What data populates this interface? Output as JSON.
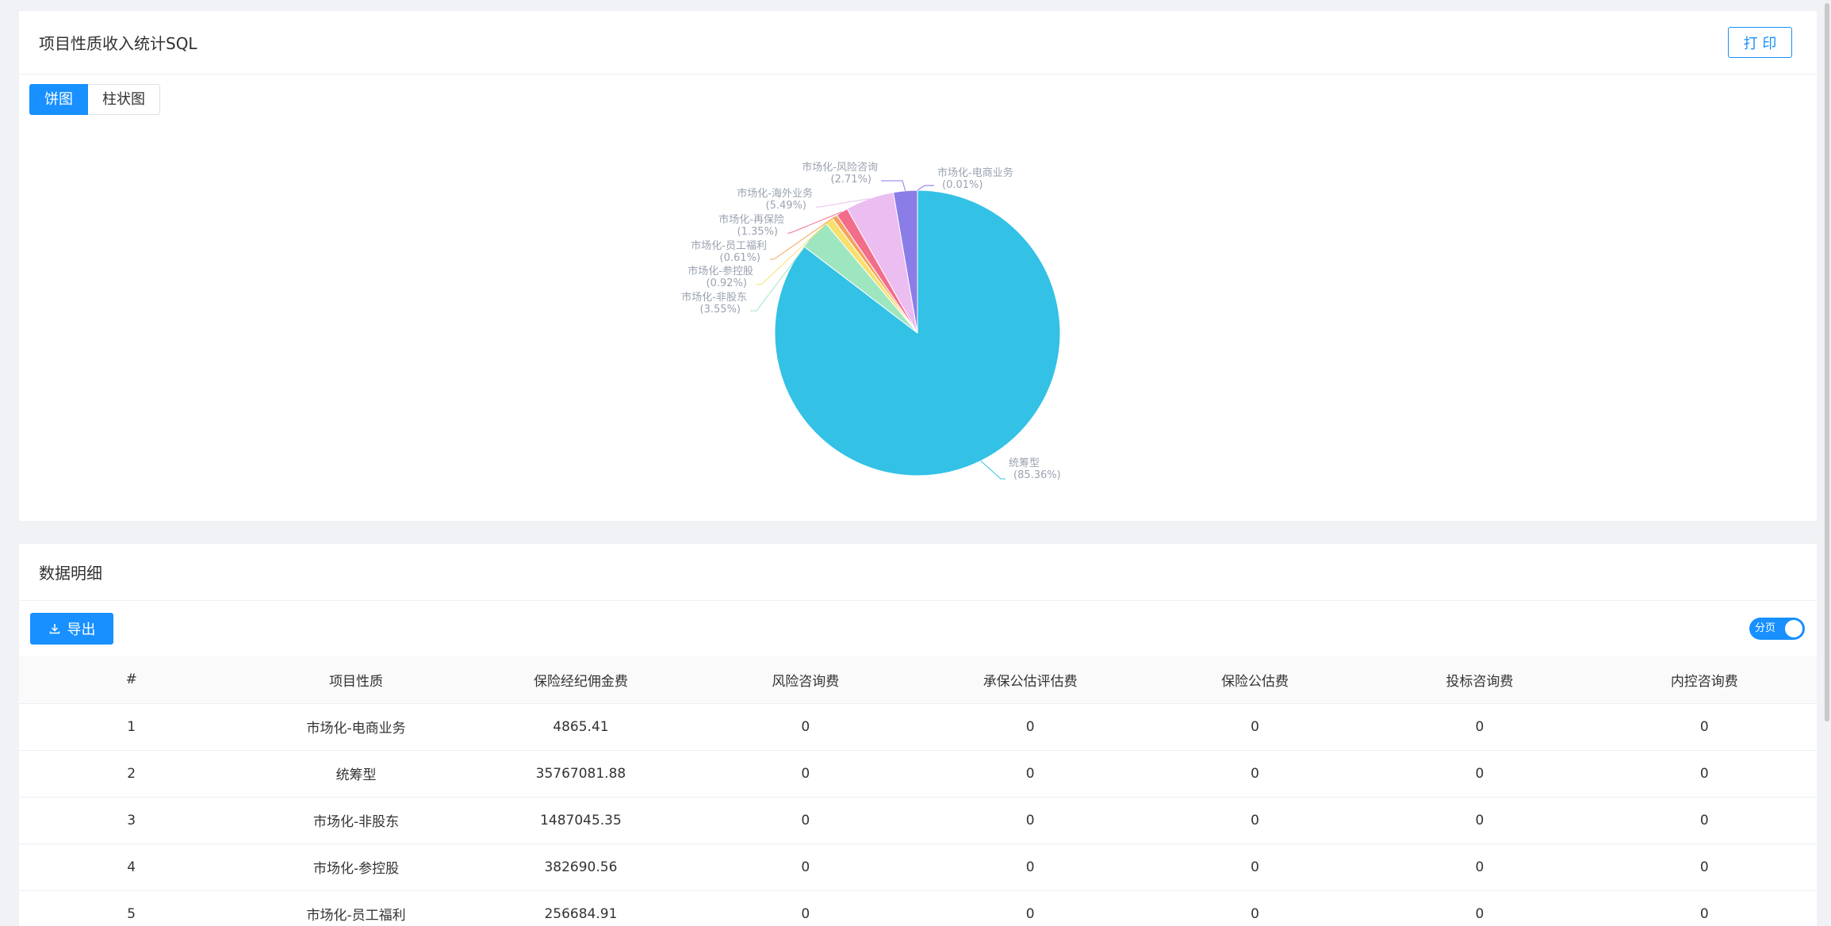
{
  "top_card": {
    "title": "项目性质收入统计SQL",
    "print_label": "打 印",
    "tabs": [
      {
        "label": "饼图",
        "active": true
      },
      {
        "label": "柱状图",
        "active": false
      }
    ]
  },
  "chart_data": {
    "type": "pie",
    "slices": [
      {
        "name": "市场化-电商业务",
        "percent_label": "(0.01%)",
        "value": 0.01,
        "color": "#7b68ee"
      },
      {
        "name": "统筹型",
        "percent_label": "(85.36%)",
        "value": 85.36,
        "color": "#33c1e6"
      },
      {
        "name": "市场化-非股东",
        "percent_label": "(3.55%)",
        "value": 3.55,
        "color": "#9ee6c0"
      },
      {
        "name": "市场化-参控股",
        "percent_label": "(0.92%)",
        "value": 0.92,
        "color": "#f7e06e"
      },
      {
        "name": "市场化-员工福利",
        "percent_label": "(0.61%)",
        "value": 0.61,
        "color": "#f5a25d"
      },
      {
        "name": "市场化-再保险",
        "percent_label": "(1.35%)",
        "value": 1.35,
        "color": "#f26d8a"
      },
      {
        "name": "市场化-海外业务",
        "percent_label": "(5.49%)",
        "value": 5.49,
        "color": "#ebbdf0"
      },
      {
        "name": "市场化-风险咨询",
        "percent_label": "(2.71%)",
        "value": 2.71,
        "color": "#8b7de8"
      }
    ]
  },
  "bottom_card": {
    "title": "数据明细",
    "export_label": "导出",
    "switch_label": "分页"
  },
  "table": {
    "headers": [
      "#",
      "项目性质",
      "保险经纪佣金费",
      "风险咨询费",
      "承保公估评估费",
      "保险公估费",
      "投标咨询费",
      "内控咨询费"
    ],
    "rows": [
      [
        "1",
        "市场化-电商业务",
        "4865.41",
        "0",
        "0",
        "0",
        "0",
        "0"
      ],
      [
        "2",
        "统筹型",
        "35767081.88",
        "0",
        "0",
        "0",
        "0",
        "0"
      ],
      [
        "3",
        "市场化-非股东",
        "1487045.35",
        "0",
        "0",
        "0",
        "0",
        "0"
      ],
      [
        "4",
        "市场化-参控股",
        "382690.56",
        "0",
        "0",
        "0",
        "0",
        "0"
      ],
      [
        "5",
        "市场化-员工福利",
        "256684.91",
        "0",
        "0",
        "0",
        "0",
        "0"
      ]
    ]
  }
}
